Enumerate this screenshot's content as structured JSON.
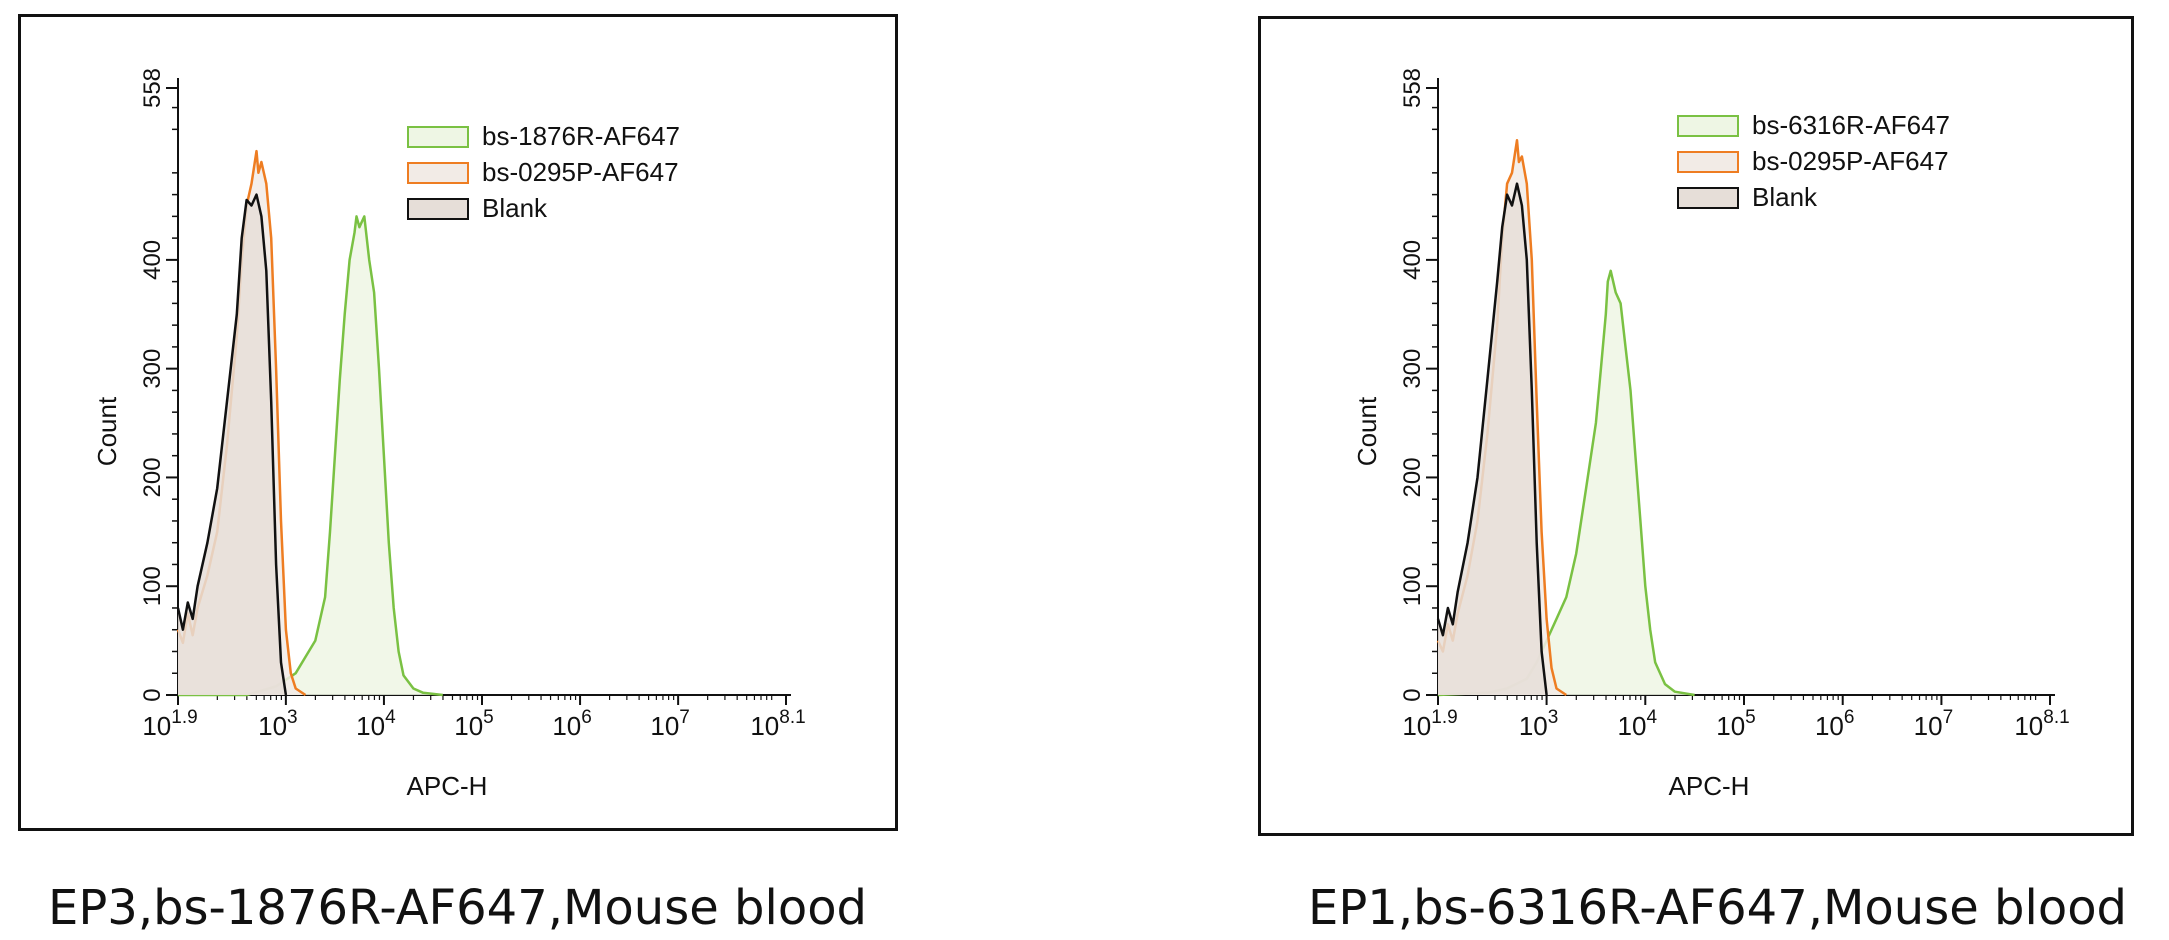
{
  "chart_data": [
    {
      "type": "area",
      "caption": "EP3,bs-1876R-AF647,Mouse blood",
      "xlabel": "APC-H",
      "ylabel": "Count",
      "x_scale": "log10",
      "xlim": [
        1.9,
        8.1
      ],
      "ylim": [
        0,
        558
      ],
      "x_ticks": [
        {
          "base": "10",
          "exp": "1.9",
          "pos": 1.9
        },
        {
          "base": "10",
          "exp": "3",
          "pos": 3
        },
        {
          "base": "10",
          "exp": "4",
          "pos": 4
        },
        {
          "base": "10",
          "exp": "5",
          "pos": 5
        },
        {
          "base": "10",
          "exp": "6",
          "pos": 6
        },
        {
          "base": "10",
          "exp": "7",
          "pos": 7
        },
        {
          "base": "10",
          "exp": "8.1",
          "pos": 8.1
        }
      ],
      "y_ticks": [
        "0",
        "100",
        "200",
        "300",
        "400",
        "558"
      ],
      "y_tick_values": [
        0,
        100,
        200,
        300,
        400,
        558
      ],
      "legend_position": "top-right",
      "series": [
        {
          "name": "bs-1876R-AF647",
          "color": "#7ac143",
          "fill": "#eef6e4",
          "x": [
            1.9,
            2.6,
            2.9,
            3.0,
            3.1,
            3.2,
            3.3,
            3.4,
            3.45,
            3.5,
            3.55,
            3.6,
            3.65,
            3.7,
            3.72,
            3.75,
            3.8,
            3.85,
            3.9,
            3.95,
            4.0,
            4.05,
            4.1,
            4.15,
            4.2,
            4.3,
            4.4,
            4.6
          ],
          "y": [
            0,
            0,
            8,
            14,
            20,
            35,
            50,
            90,
            150,
            220,
            290,
            350,
            400,
            425,
            440,
            430,
            440,
            400,
            370,
            300,
            220,
            140,
            80,
            40,
            18,
            6,
            2,
            0
          ]
        },
        {
          "name": "bs-0295P-AF647",
          "color": "#ee7d22",
          "fill": "#f2ebe6",
          "x": [
            1.9,
            1.95,
            2.0,
            2.05,
            2.1,
            2.2,
            2.3,
            2.4,
            2.5,
            2.55,
            2.6,
            2.65,
            2.7,
            2.72,
            2.75,
            2.8,
            2.85,
            2.9,
            2.95,
            3.0,
            3.05,
            3.1,
            3.2
          ],
          "y": [
            60,
            48,
            75,
            55,
            80,
            110,
            150,
            230,
            330,
            400,
            450,
            470,
            500,
            480,
            490,
            470,
            420,
            300,
            160,
            60,
            20,
            6,
            0
          ]
        },
        {
          "name": "Blank",
          "color": "#111111",
          "fill": "#e6ded8",
          "x": [
            1.9,
            1.95,
            2.0,
            2.05,
            2.1,
            2.2,
            2.3,
            2.4,
            2.5,
            2.55,
            2.6,
            2.65,
            2.7,
            2.75,
            2.8,
            2.85,
            2.9,
            2.95,
            3.0
          ],
          "y": [
            80,
            60,
            85,
            70,
            100,
            140,
            190,
            270,
            350,
            420,
            455,
            450,
            460,
            440,
            390,
            270,
            120,
            30,
            0
          ]
        }
      ]
    },
    {
      "type": "area",
      "caption": "EP1,bs-6316R-AF647,Mouse blood",
      "xlabel": "APC-H",
      "ylabel": "Count",
      "x_scale": "log10",
      "xlim": [
        1.9,
        8.1
      ],
      "ylim": [
        0,
        558
      ],
      "x_ticks": [
        {
          "base": "10",
          "exp": "1.9",
          "pos": 1.9
        },
        {
          "base": "10",
          "exp": "3",
          "pos": 3
        },
        {
          "base": "10",
          "exp": "4",
          "pos": 4
        },
        {
          "base": "10",
          "exp": "5",
          "pos": 5
        },
        {
          "base": "10",
          "exp": "6",
          "pos": 6
        },
        {
          "base": "10",
          "exp": "7",
          "pos": 7
        },
        {
          "base": "10",
          "exp": "8.1",
          "pos": 8.1
        }
      ],
      "y_ticks": [
        "0",
        "100",
        "200",
        "300",
        "400",
        "558"
      ],
      "y_tick_values": [
        0,
        100,
        200,
        300,
        400,
        558
      ],
      "legend_position": "top-right",
      "series": [
        {
          "name": "bs-6316R-AF647",
          "color": "#7ac143",
          "fill": "#eef6e4",
          "x": [
            1.9,
            2.4,
            2.6,
            2.8,
            2.9,
            3.0,
            3.1,
            3.2,
            3.3,
            3.4,
            3.5,
            3.55,
            3.6,
            3.62,
            3.65,
            3.7,
            3.75,
            3.8,
            3.85,
            3.9,
            3.95,
            4.0,
            4.05,
            4.1,
            4.2,
            4.3,
            4.5
          ],
          "y": [
            0,
            2,
            6,
            15,
            30,
            50,
            70,
            90,
            130,
            190,
            250,
            300,
            350,
            380,
            390,
            370,
            360,
            320,
            280,
            220,
            160,
            100,
            60,
            30,
            10,
            3,
            0
          ]
        },
        {
          "name": "bs-0295P-AF647",
          "color": "#ee7d22",
          "fill": "#f2ebe6",
          "x": [
            1.9,
            1.95,
            2.0,
            2.05,
            2.1,
            2.2,
            2.3,
            2.4,
            2.5,
            2.55,
            2.6,
            2.65,
            2.7,
            2.72,
            2.75,
            2.8,
            2.85,
            2.9,
            2.95,
            3.0,
            3.05,
            3.1,
            3.2
          ],
          "y": [
            50,
            40,
            65,
            50,
            75,
            110,
            160,
            240,
            340,
            420,
            470,
            480,
            510,
            490,
            495,
            470,
            400,
            270,
            150,
            70,
            25,
            6,
            0
          ]
        },
        {
          "name": "Blank",
          "color": "#111111",
          "fill": "#e6ded8",
          "x": [
            1.9,
            1.95,
            2.0,
            2.05,
            2.1,
            2.2,
            2.3,
            2.4,
            2.5,
            2.55,
            2.6,
            2.65,
            2.7,
            2.75,
            2.8,
            2.85,
            2.9,
            2.95,
            3.0
          ],
          "y": [
            70,
            55,
            80,
            65,
            95,
            140,
            200,
            290,
            380,
            430,
            460,
            450,
            470,
            450,
            400,
            280,
            140,
            40,
            0
          ]
        }
      ]
    }
  ]
}
